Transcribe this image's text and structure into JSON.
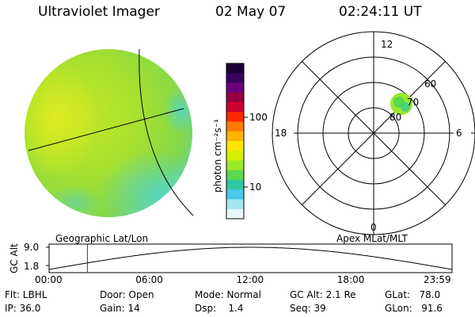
{
  "header": {
    "title": "Ultraviolet Imager",
    "date": "02 May 07",
    "time": "02:24:11 UT"
  },
  "colorbar": {
    "label": "photon cm⁻²s⁻¹",
    "ticks": [
      "100",
      "10"
    ],
    "colors": [
      "#1a0033",
      "#3a0060",
      "#6a0080",
      "#99003f",
      "#cc0033",
      "#ff2a00",
      "#ff7a00",
      "#ffb400",
      "#ffe600",
      "#d4f000",
      "#9ae82a",
      "#5ad84e",
      "#2ec9a0",
      "#49c8e8",
      "#a6e6f0",
      "#e8f6f8"
    ]
  },
  "polar_plot": {
    "mlt_labels": {
      "top": "12",
      "left": "18",
      "right": "6",
      "bottom": "0"
    },
    "lat_labels": [
      "60",
      "70",
      "80"
    ],
    "caption": "Apex MLat/MLT"
  },
  "image_panel": {
    "caption": "Geographic Lat/Lon"
  },
  "orbit_plot": {
    "ylabel": "GC Alt",
    "yticks": [
      "9.0",
      "1.8"
    ],
    "xticks": [
      "00:00",
      "06:00",
      "12:00",
      "18:00",
      "23:59"
    ],
    "current_time_fraction": 0.1
  },
  "info": {
    "col1": [
      "Flt: LBHL",
      "IP: 36.0"
    ],
    "col2": [
      "Door: Open",
      "Gain: 14"
    ],
    "col3": [
      "Mode: Normal",
      "Dsp:    1.4"
    ],
    "col4": [
      "GC Alt: 2.1 Re",
      "Seq: 39"
    ],
    "col5": [
      "GLat:   78.0",
      "GLon:   91.6"
    ]
  },
  "colors": {
    "disk_green": "#a6e02e",
    "disk_yellow": "#d2ea22",
    "disk_cyan": "#57d6c2",
    "marker_red": "#cc0000"
  }
}
